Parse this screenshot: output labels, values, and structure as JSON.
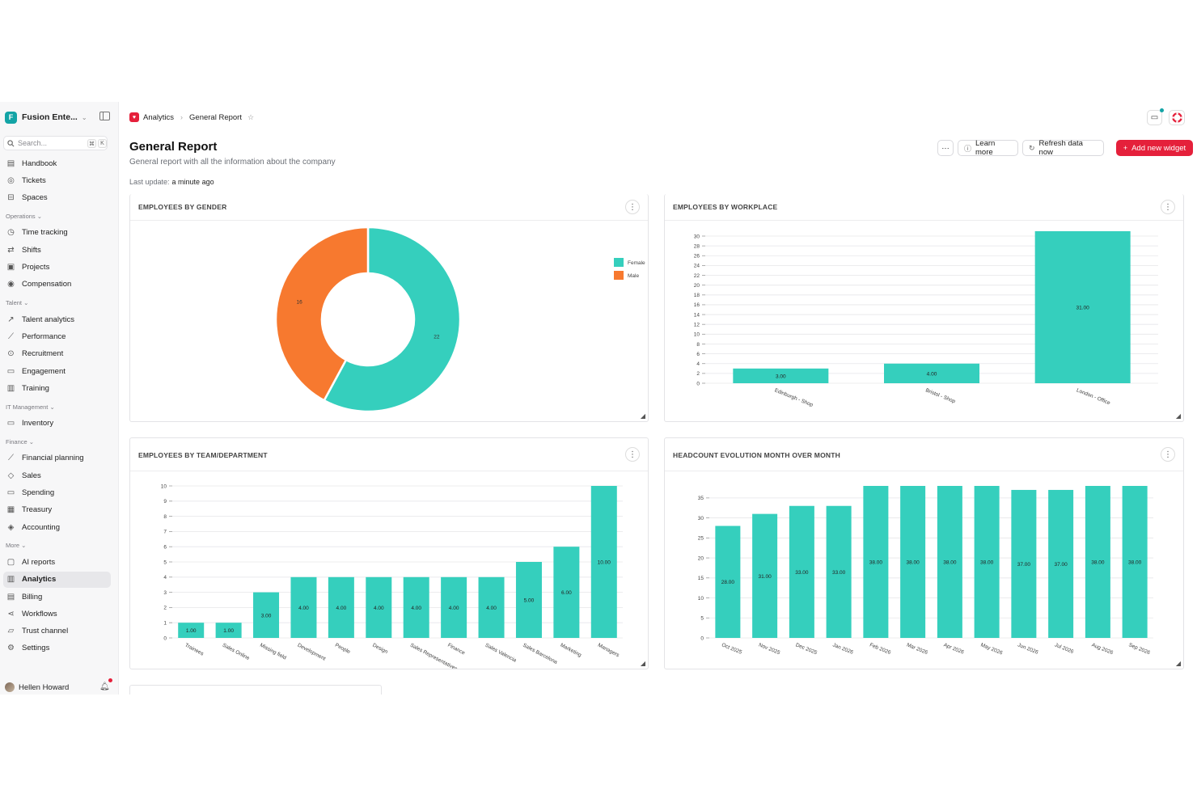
{
  "workspace": {
    "name": "Fusion Ente...",
    "logo_letter": "F"
  },
  "search": {
    "placeholder": "Search...",
    "shortcut_mod": "⌘",
    "shortcut_key": "K"
  },
  "sidebar": {
    "top_items": [
      {
        "label": "Handbook",
        "icon": "book-icon"
      },
      {
        "label": "Tickets",
        "icon": "ticket-icon"
      },
      {
        "label": "Spaces",
        "icon": "spaces-icon"
      }
    ],
    "sections": [
      {
        "title": "Operations",
        "items": [
          {
            "label": "Time tracking",
            "icon": "clock-icon"
          },
          {
            "label": "Shifts",
            "icon": "shifts-icon"
          },
          {
            "label": "Projects",
            "icon": "briefcase-icon"
          },
          {
            "label": "Compensation",
            "icon": "coin-icon"
          }
        ]
      },
      {
        "title": "Talent",
        "items": [
          {
            "label": "Talent analytics",
            "icon": "trend-icon"
          },
          {
            "label": "Performance",
            "icon": "chart-line-icon"
          },
          {
            "label": "Recruitment",
            "icon": "search-person-icon"
          },
          {
            "label": "Engagement",
            "icon": "chat-icon"
          },
          {
            "label": "Training",
            "icon": "open-book-icon"
          }
        ]
      },
      {
        "title": "IT Management",
        "items": [
          {
            "label": "Inventory",
            "icon": "devices-icon"
          }
        ]
      },
      {
        "title": "Finance",
        "items": [
          {
            "label": "Financial planning",
            "icon": "chart-line-icon"
          },
          {
            "label": "Sales",
            "icon": "tag-icon"
          },
          {
            "label": "Spending",
            "icon": "card-icon"
          },
          {
            "label": "Treasury",
            "icon": "bank-icon"
          },
          {
            "label": "Accounting",
            "icon": "accounting-icon"
          }
        ]
      },
      {
        "title": "More",
        "items": [
          {
            "label": "AI reports",
            "icon": "ai-icon"
          },
          {
            "label": "Analytics",
            "icon": "analytics-icon",
            "active": true
          },
          {
            "label": "Billing",
            "icon": "bill-icon"
          },
          {
            "label": "Workflows",
            "icon": "workflow-icon"
          },
          {
            "label": "Trust channel",
            "icon": "shield-icon"
          },
          {
            "label": "Settings",
            "icon": "gear-icon"
          }
        ]
      }
    ]
  },
  "user": {
    "name": "Hellen Howard"
  },
  "breadcrumb": {
    "section": "Analytics",
    "page": "General Report"
  },
  "header": {
    "title": "General Report",
    "subtitle": "General report with all the information about the company",
    "last_update_label": "Last update:",
    "last_update_value": "a minute ago",
    "more_label": "···",
    "learn_more": "Learn more",
    "refresh": "Refresh data now",
    "add_widget": "Add new widget"
  },
  "colors": {
    "teal": "#35cfbd",
    "orange": "#f7792f",
    "brand_red": "#e5203b"
  },
  "widgets": {
    "gender": {
      "title": "EMPLOYEES BY GENDER"
    },
    "workplace": {
      "title": "EMPLOYEES BY WORKPLACE"
    },
    "team": {
      "title": "EMPLOYEES BY TEAM/DEPARTMENT"
    },
    "headcount": {
      "title": "HEADCOUNT EVOLUTION MONTH OVER MONTH"
    }
  },
  "chart_data": [
    {
      "type": "pie",
      "title": "EMPLOYEES BY GENDER",
      "categories": [
        "Female",
        "Male"
      ],
      "values": [
        22,
        16
      ],
      "value_labels": [
        "22",
        "16"
      ],
      "colors": [
        "#35cfbd",
        "#f7792f"
      ],
      "donut": true,
      "legend": "top-right"
    },
    {
      "type": "bar",
      "title": "EMPLOYEES BY WORKPLACE",
      "categories": [
        "Edinburgh - Shop",
        "Bristol - Shop",
        "London - Office"
      ],
      "values": [
        3,
        4,
        31
      ],
      "value_labels": [
        "3.00",
        "4.00",
        "31.00"
      ],
      "ylim": [
        0,
        30
      ],
      "yticks": [
        "0",
        "2",
        "4",
        "6",
        "8",
        "10",
        "12",
        "14",
        "16",
        "18",
        "20",
        "22",
        "24",
        "26",
        "28",
        "30"
      ],
      "grid": true
    },
    {
      "type": "bar",
      "title": "EMPLOYEES BY TEAM/DEPARTMENT",
      "categories": [
        "Trainees",
        "Sales Online",
        "Missing field",
        "Development",
        "People",
        "Design",
        "Sales Representatives",
        "Finance",
        "Sales Valencia",
        "Sales Barcelona",
        "Marketing",
        "Managers"
      ],
      "values": [
        1,
        1,
        3,
        4,
        4,
        4,
        4,
        4,
        4,
        5,
        6,
        10
      ],
      "value_labels": [
        "1.00",
        "1.00",
        "3.00",
        "4.00",
        "4.00",
        "4.00",
        "4.00",
        "4.00",
        "4.00",
        "5.00",
        "6.00",
        "10.00"
      ],
      "ylim": [
        0,
        10
      ],
      "yticks": [
        "0",
        "1",
        "2",
        "3",
        "4",
        "5",
        "6",
        "7",
        "8",
        "9",
        "10"
      ],
      "grid": true
    },
    {
      "type": "bar",
      "title": "HEADCOUNT EVOLUTION MONTH OVER MONTH",
      "categories": [
        "Oct 2025",
        "Nov 2025",
        "Dec 2025",
        "Jan 2026",
        "Feb 2026",
        "Mar 2026",
        "Apr 2026",
        "May 2026",
        "Jun 2026",
        "Jul 2026",
        "Aug 2026",
        "Sep 2026"
      ],
      "values": [
        28,
        31,
        33,
        33,
        38,
        38,
        38,
        38,
        37,
        37,
        38,
        38
      ],
      "value_labels": [
        "28.00",
        "31.00",
        "33.00",
        "33.00",
        "38.00",
        "38.00",
        "38.00",
        "38.00",
        "37.00",
        "37.00",
        "38.00",
        "38.00"
      ],
      "ylim": [
        0,
        38
      ],
      "yticks": [
        "0",
        "5",
        "10",
        "15",
        "20",
        "25",
        "30",
        "35"
      ],
      "grid": true
    }
  ]
}
